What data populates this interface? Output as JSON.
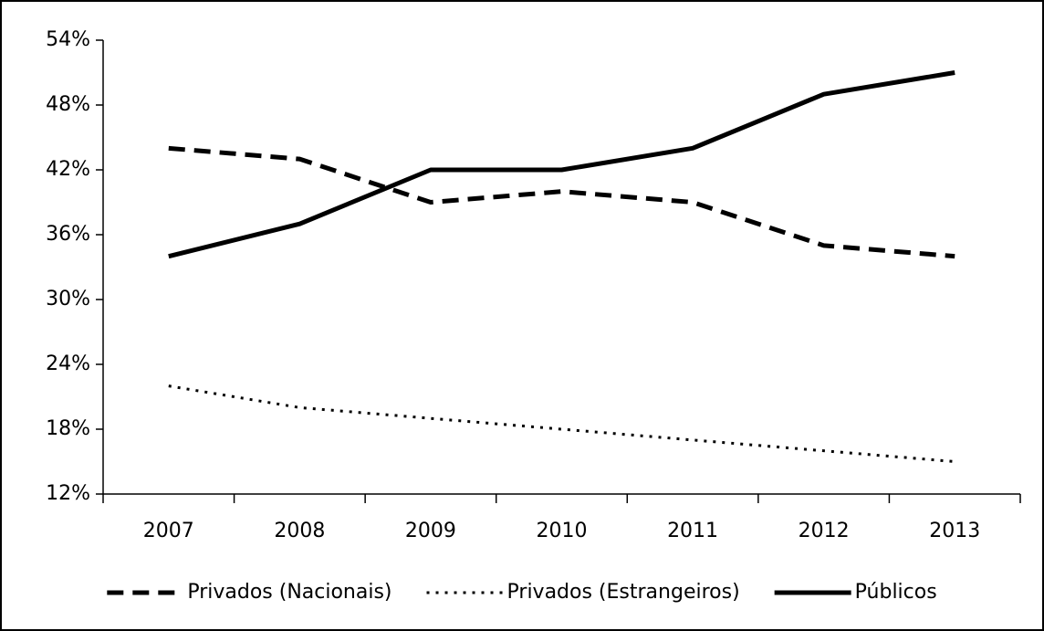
{
  "chart_data": {
    "type": "line",
    "categories": [
      "2007",
      "2008",
      "2009",
      "2010",
      "2011",
      "2012",
      "2013"
    ],
    "series": [
      {
        "name": "Privados (Nacionais)",
        "color": "#000000",
        "style": "dashed",
        "values": [
          44,
          43,
          39,
          40,
          39,
          35,
          34
        ]
      },
      {
        "name": "Privados (Estrangeiros)",
        "color": "#000000",
        "style": "dotted",
        "values": [
          22,
          20,
          19,
          18,
          17,
          16,
          15
        ]
      },
      {
        "name": "Públicos",
        "color": "#000000",
        "style": "solid",
        "values": [
          34,
          37,
          42,
          42,
          44,
          49,
          51
        ]
      }
    ],
    "ylim": [
      12,
      54
    ],
    "yticks": [
      {
        "value": 12,
        "label": "12%"
      },
      {
        "value": 18,
        "label": "18%"
      },
      {
        "value": 24,
        "label": "24%"
      },
      {
        "value": 30,
        "label": "30%"
      },
      {
        "value": 36,
        "label": "36%"
      },
      {
        "value": 42,
        "label": "42%"
      },
      {
        "value": 48,
        "label": "48%"
      },
      {
        "value": 54,
        "label": "54%"
      }
    ],
    "grid": false,
    "legend": "bottom"
  }
}
